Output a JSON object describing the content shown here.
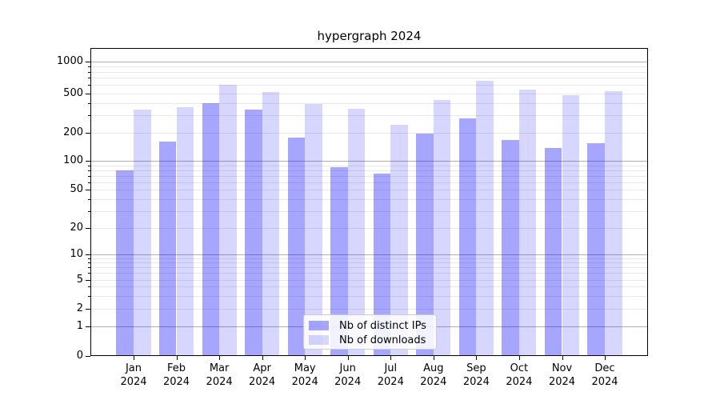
{
  "title": "hypergraph 2024",
  "chart_data": {
    "type": "bar",
    "title": "hypergraph 2024",
    "categories": [
      "Jan 2024",
      "Feb 2024",
      "Mar 2024",
      "Apr 2024",
      "May 2024",
      "Jun 2024",
      "Jul 2024",
      "Aug 2024",
      "Sep 2024",
      "Oct 2024",
      "Nov 2024",
      "Dec 2024"
    ],
    "series": [
      {
        "name": "Nb of distinct IPs",
        "color": "#0000ff",
        "alpha": 0.35,
        "values": [
          80,
          160,
          400,
          340,
          178,
          86,
          74,
          195,
          280,
          167,
          137,
          154
        ]
      },
      {
        "name": "Nb of downloads",
        "color": "#0000ff",
        "alpha": 0.16,
        "values": [
          340,
          360,
          600,
          515,
          390,
          350,
          240,
          425,
          660,
          545,
          480,
          525
        ]
      }
    ],
    "xlabel": "",
    "ylabel": "",
    "yscale": "symlog",
    "y_ticks": [
      0,
      1,
      2,
      5,
      10,
      20,
      50,
      100,
      200,
      500,
      1000
    ],
    "ylim": [
      0,
      1300
    ],
    "grid": true,
    "grid_major_color": "#b0b0b0",
    "grid_minor_color": "#e9e9e9",
    "legend_position": "lower center"
  }
}
